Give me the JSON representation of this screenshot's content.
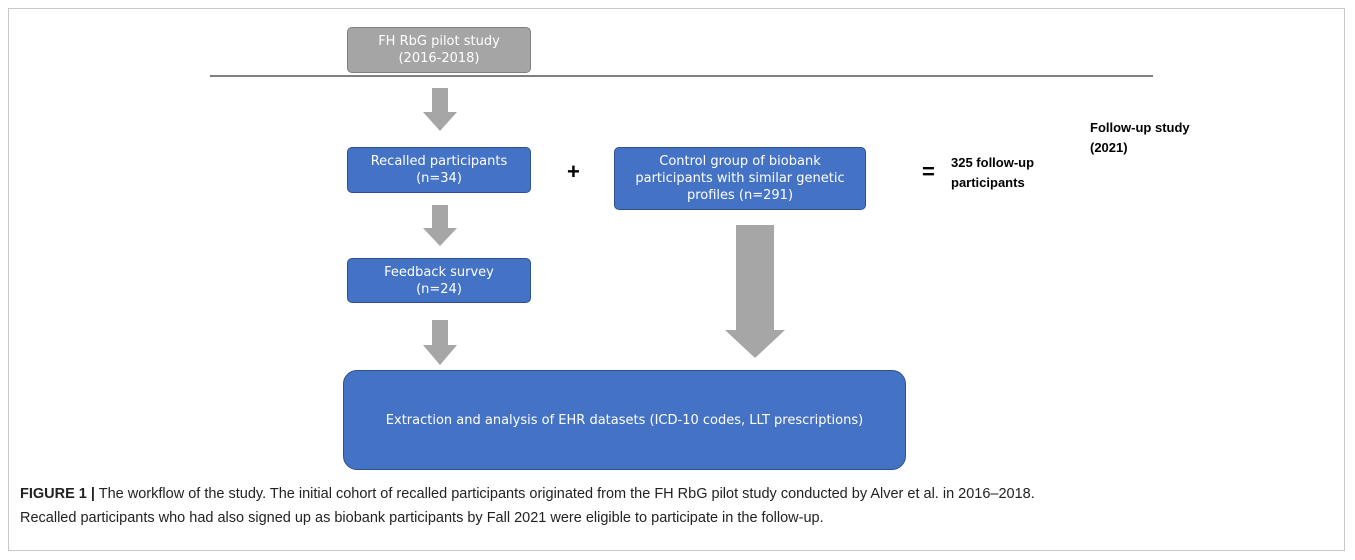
{
  "nodes": [
    {
      "lines": [
        "FH RbG pilot study",
        "(2016-2018)"
      ]
    },
    {
      "lines": [
        "Recalled participants",
        "(n=34)"
      ]
    },
    {
      "lines": [
        "Control group of biobank",
        "participants with similar genetic",
        "profiles (n=291)"
      ]
    },
    {
      "lines": [
        "Feedback survey",
        "(n=24)"
      ]
    },
    {
      "lines": [
        "Extraction and analysis of EHR datasets (ICD-10 codes, LLT prescriptions)"
      ]
    }
  ],
  "operators": [
    "+",
    "="
  ],
  "result": [
    "325 follow-up",
    "participants"
  ],
  "phase_label": [
    "Follow-up study",
    "(2021)"
  ],
  "caption": {
    "label": "FIGURE 1 |",
    "line1": "The workflow of the study. The initial cohort of recalled participants originated from the FH RbG pilot study conducted by Alver et al. in 2016–2018.",
    "line2": "Recalled participants who had also signed up as biobank participants by Fall 2021 were eligible to participate in the follow-up."
  }
}
